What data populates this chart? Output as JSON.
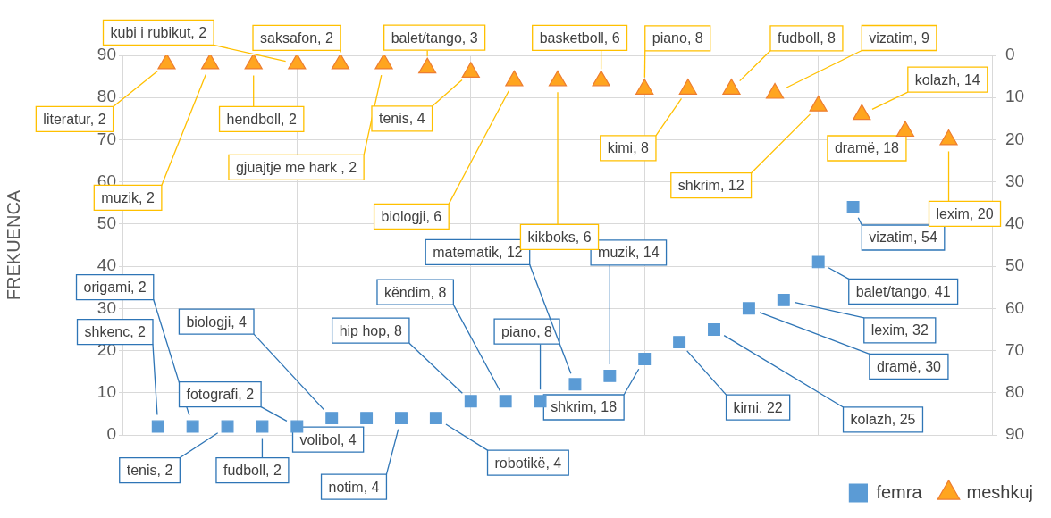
{
  "chart_data": {
    "type": "scatter",
    "ylabel": "FREKUENCA",
    "categories": [
      null,
      null,
      null,
      null,
      null,
      null,
      null,
      null,
      null,
      null,
      null,
      null,
      null,
      null,
      null,
      null,
      null,
      null,
      null,
      null,
      null,
      null,
      null,
      null,
      null,
      null,
      null,
      null,
      null,
      null,
      null,
      null,
      null,
      null,
      null,
      null,
      null,
      null,
      null,
      null,
      null,
      null,
      null,
      null,
      null,
      null,
      null,
      null,
      null,
      null,
      null,
      null,
      null,
      null,
      null,
      null,
      null,
      null,
      null,
      null,
      null,
      null,
      null,
      null,
      null,
      null,
      null,
      null,
      null,
      null,
      null,
      null,
      null,
      null,
      null,
      null,
      null,
      null,
      null,
      null,
      null,
      null,
      null,
      null,
      null,
      null,
      null,
      null,
      null,
      null,
      null,
      null,
      null,
      null,
      null,
      null,
      null,
      null,
      null,
      null,
      null
    ],
    "ylim": [
      0,
      90
    ],
    "yticks": [
      0,
      10,
      20,
      30,
      40,
      50,
      60,
      70,
      80,
      90
    ],
    "y2lim": [
      90,
      0
    ],
    "y2ticks": [
      0,
      10,
      20,
      30,
      40,
      50,
      60,
      70,
      80,
      90
    ],
    "grid": true,
    "legend": "bottom right",
    "series": [
      {
        "name": "femra",
        "color": "#5b9bd5",
        "marker": "square",
        "values": [
          null,
          null,
          null,
          null,
          2,
          null,
          null,
          null,
          2,
          null,
          null,
          null,
          2,
          null,
          null,
          null,
          2,
          null,
          null,
          null,
          2,
          null,
          null,
          null,
          4,
          null,
          null,
          null,
          4,
          null,
          null,
          null,
          4,
          null,
          null,
          null,
          4,
          null,
          null,
          null,
          8,
          null,
          null,
          null,
          8,
          null,
          null,
          null,
          8,
          null,
          null,
          null,
          12,
          null,
          null,
          null,
          14,
          null,
          null,
          null,
          18,
          null,
          null,
          null,
          22,
          null,
          null,
          null,
          25,
          null,
          null,
          null,
          30,
          null,
          null,
          null,
          32,
          null,
          null,
          null,
          41,
          null,
          null,
          null,
          54,
          null,
          null,
          null,
          null,
          null,
          null,
          null,
          null,
          null,
          null,
          null,
          null,
          null,
          null,
          null,
          null
        ],
        "value_labels": [
          null,
          null,
          null,
          null,
          "shkenc, 2",
          null,
          null,
          null,
          "origami, 2",
          null,
          null,
          null,
          "tenis, 2",
          null,
          null,
          null,
          "fudboll, 2",
          null,
          null,
          null,
          "fotografi, 2",
          null,
          null,
          null,
          "biologji, 4",
          null,
          null,
          null,
          "volibol, 4",
          null,
          null,
          null,
          "notim, 4",
          null,
          null,
          null,
          "robotikë, 4",
          null,
          null,
          null,
          "hip hop, 8",
          null,
          null,
          null,
          "këndim, 8",
          null,
          null,
          null,
          "piano, 8",
          null,
          null,
          null,
          "matematik, 12",
          null,
          null,
          null,
          "muzik, 14",
          null,
          null,
          null,
          "shkrim, 18",
          null,
          null,
          null,
          "kimi, 22",
          null,
          null,
          null,
          "kolazh, 25",
          null,
          null,
          null,
          "dramë, 30",
          null,
          null,
          null,
          "lexim, 32",
          null,
          null,
          null,
          "balet/tango, 41",
          null,
          null,
          null,
          "vizatim, 54",
          null,
          null,
          null,
          null,
          null,
          null,
          null,
          null,
          null,
          null,
          null,
          null,
          null,
          null,
          null,
          null
        ]
      },
      {
        "name": "meshkuj",
        "color": "#ffa51f",
        "marker": "triangle",
        "axis": "y2",
        "values": [
          null,
          null,
          null,
          null,
          null,
          2,
          null,
          null,
          null,
          null,
          2,
          null,
          null,
          null,
          null,
          2,
          null,
          null,
          null,
          null,
          2,
          null,
          null,
          null,
          null,
          2,
          null,
          null,
          null,
          null,
          2,
          null,
          null,
          null,
          null,
          3,
          null,
          null,
          null,
          null,
          4,
          null,
          null,
          null,
          null,
          6,
          null,
          null,
          null,
          null,
          6,
          null,
          null,
          null,
          null,
          6,
          null,
          null,
          null,
          null,
          8,
          null,
          null,
          null,
          null,
          8,
          null,
          null,
          null,
          null,
          8,
          null,
          null,
          null,
          null,
          9,
          null,
          null,
          null,
          null,
          12,
          null,
          null,
          null,
          null,
          14,
          null,
          null,
          null,
          null,
          18,
          null,
          null,
          null,
          null,
          20,
          null,
          null,
          null,
          null,
          null
        ],
        "value_labels": [
          null,
          null,
          null,
          null,
          null,
          "literatur, 2",
          null,
          null,
          null,
          null,
          "muzik, 2",
          null,
          null,
          null,
          null,
          "hendboll, 2",
          null,
          null,
          null,
          null,
          "kubi i rubikut, 2",
          null,
          null,
          null,
          null,
          "saksafon, 2",
          null,
          null,
          null,
          null,
          "gjuajtje me hark , 2",
          null,
          null,
          null,
          null,
          "balet/tango, 3",
          null,
          null,
          null,
          null,
          "tenis, 4",
          null,
          null,
          null,
          null,
          "biologji, 6",
          null,
          null,
          null,
          null,
          "kikboks, 6",
          null,
          null,
          null,
          null,
          "basketboll, 6",
          null,
          null,
          null,
          null,
          "piano, 8",
          null,
          null,
          null,
          null,
          "kimi, 8",
          null,
          null,
          null,
          null,
          "fudboll, 8",
          null,
          null,
          null,
          null,
          "vizatim, 9",
          null,
          null,
          null,
          null,
          "shkrim, 12",
          null,
          null,
          null,
          null,
          "kolazh, 14",
          null,
          null,
          null,
          null,
          "dramë, 18",
          null,
          null,
          null,
          null,
          "lexim, 20",
          null,
          null,
          null,
          null,
          null
        ]
      }
    ]
  }
}
